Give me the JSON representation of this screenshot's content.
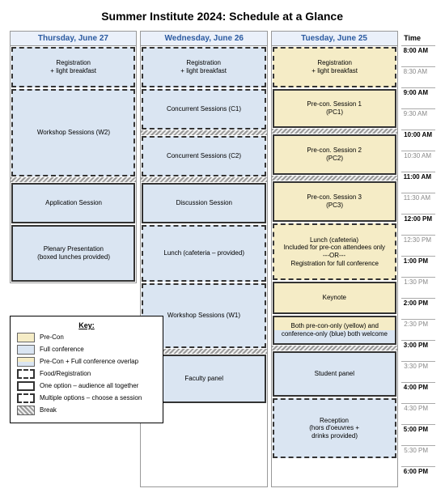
{
  "title": "Summer Institute 2024: Schedule at a Glance",
  "time_header": "Time",
  "times": [
    {
      "t": "8:00 AM",
      "m": true
    },
    {
      "t": "8:30 AM",
      "m": false
    },
    {
      "t": "9:00 AM",
      "m": true
    },
    {
      "t": "9:30 AM",
      "m": false
    },
    {
      "t": "10:00 AM",
      "m": true
    },
    {
      "t": "10:30 AM",
      "m": false
    },
    {
      "t": "11:00 AM",
      "m": true
    },
    {
      "t": "11:30 AM",
      "m": false
    },
    {
      "t": "12:00 PM",
      "m": true
    },
    {
      "t": "12:30 PM",
      "m": false
    },
    {
      "t": "1:00 PM",
      "m": true
    },
    {
      "t": "1:30 PM",
      "m": false
    },
    {
      "t": "2:00 PM",
      "m": true
    },
    {
      "t": "2:30 PM",
      "m": false
    },
    {
      "t": "3:00 PM",
      "m": true
    },
    {
      "t": "3:30 PM",
      "m": false
    },
    {
      "t": "4:00 PM",
      "m": true
    },
    {
      "t": "4:30 PM",
      "m": false
    },
    {
      "t": "5:00 PM",
      "m": true
    },
    {
      "t": "5:30 PM",
      "m": false
    },
    {
      "t": "6:00 PM",
      "m": true
    }
  ],
  "days": [
    {
      "title": "Tuesday, June 25"
    },
    {
      "title": "Wednesday, June 26"
    },
    {
      "title": "Thursday, June 27"
    }
  ],
  "blocks": {
    "reg": "Registration",
    "reg2": "+ light breakfast",
    "pc1a": "Pre-con. Session 1",
    "pc1b": "(PC1)",
    "pc2a": "Pre-con. Session 2",
    "pc2b": "(PC2)",
    "pc3a": "Pre-con. Session 3",
    "pc3b": "(PC3)",
    "lunchTue1": "Lunch (cafeteria)",
    "lunchTue2": "Included for pre-con attendees only",
    "lunchTue3": "---OR---",
    "lunchTue4": "Registration for full conference",
    "keynote": "Keynote",
    "both1": "Both pre-con-only (yellow) and",
    "both2": "conference-only (blue) both welcome",
    "studPanel": "Student panel",
    "reception1": "Reception",
    "reception2": "(hors d'oeuvres +",
    "reception3": "drinks provided)",
    "cc1": "Concurrent Sessions (C1)",
    "cc2": "Concurrent Sessions (C2)",
    "disc": "Discussion Session",
    "lunchWed": "Lunch (cafeteria – provided)",
    "ws1": "Workshop Sessions (W1)",
    "facPanel": "Faculty panel",
    "ws2": "Workshop Sessions (W2)",
    "appSess": "Application Session",
    "plenary1": "Plenary Presentation",
    "plenary2": "(boxed lunches provided)"
  },
  "legend": {
    "title": "Key:",
    "precon": "Pre-Con",
    "full": "Full conference",
    "overlap": "Pre-Con + Full conference overlap",
    "food": "Food/Registration",
    "one": "One option – audience all together",
    "multi": "Multiple options – choose a session",
    "break": "Break"
  },
  "colors": {
    "yellow": "#f5ecc6",
    "blue": "#dae5f2",
    "headBlue": "#2b5aa0",
    "headBg": "#eaf0fa"
  }
}
